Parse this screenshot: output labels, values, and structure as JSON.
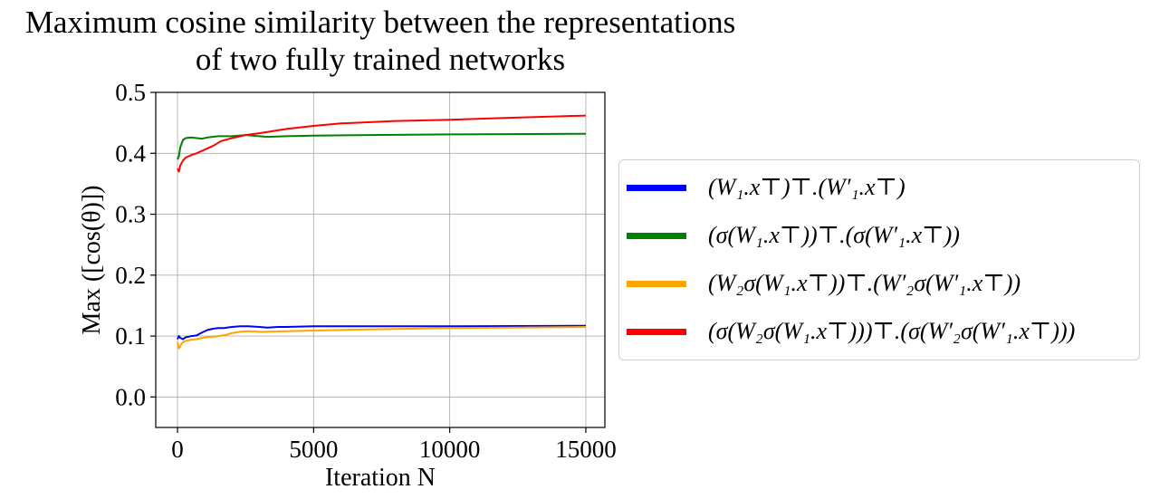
{
  "chart_data": {
    "type": "line",
    "title": [
      "Maximum cosine similarity between the representations",
      "of  two fully trained networks"
    ],
    "xlabel": "Iteration N",
    "ylabel": "Max ([cos(θ)])",
    "xlim": [
      -800,
      15700
    ],
    "ylim": [
      -0.05,
      0.5
    ],
    "xticks": [
      0,
      5000,
      10000,
      15000
    ],
    "xtick_labels": [
      "0",
      "5000",
      "10000",
      "15000"
    ],
    "yticks": [
      0.0,
      0.1,
      0.2,
      0.3,
      0.4,
      0.5
    ],
    "ytick_labels": [
      "0.0",
      "0.1",
      "0.2",
      "0.3",
      "0.4",
      "0.5"
    ],
    "grid": true,
    "legend_position": "outside-right",
    "series": [
      {
        "name": "(W₁.x⊤)⊤.(W′₁.x⊤)",
        "color": "#0000ff",
        "x": [
          0,
          50,
          100,
          200,
          300,
          500,
          700,
          900,
          1100,
          1300,
          1500,
          1700,
          2000,
          2300,
          2600,
          3000,
          3300,
          3700,
          4000,
          5000,
          7000,
          10000,
          15000
        ],
        "y": [
          0.095,
          0.1,
          0.097,
          0.095,
          0.098,
          0.1,
          0.101,
          0.106,
          0.11,
          0.112,
          0.113,
          0.113,
          0.115,
          0.116,
          0.116,
          0.115,
          0.114,
          0.115,
          0.115,
          0.116,
          0.116,
          0.116,
          0.117
        ]
      },
      {
        "name": "(σ(W₁.x⊤))⊤.(σ(W′₁.x⊤))",
        "color": "#008000",
        "x": [
          0,
          50,
          100,
          200,
          300,
          500,
          700,
          900,
          1100,
          1500,
          2000,
          2500,
          3000,
          3300,
          4000,
          5000,
          7000,
          10000,
          15000
        ],
        "y": [
          0.39,
          0.395,
          0.41,
          0.422,
          0.425,
          0.426,
          0.425,
          0.424,
          0.426,
          0.428,
          0.428,
          0.43,
          0.428,
          0.427,
          0.428,
          0.429,
          0.43,
          0.431,
          0.432
        ]
      },
      {
        "name": "(W₂σ(W₁.x⊤))⊤.(W′₂σ(W′₁.x⊤))",
        "color": "#ffa500",
        "x": [
          0,
          50,
          100,
          150,
          200,
          300,
          500,
          700,
          900,
          1100,
          1300,
          1500,
          1800,
          2000,
          2300,
          2600,
          3000,
          3200,
          4000,
          5000,
          7000,
          10000,
          15000
        ],
        "y": [
          0.09,
          0.08,
          0.083,
          0.088,
          0.09,
          0.092,
          0.094,
          0.095,
          0.097,
          0.098,
          0.099,
          0.1,
          0.102,
          0.105,
          0.107,
          0.108,
          0.107,
          0.107,
          0.108,
          0.109,
          0.111,
          0.113,
          0.115
        ]
      },
      {
        "name": "(σ(W₂σ(W₁.x⊤)))⊤.(σ(W′₂σ(W′₁.x⊤)))",
        "color": "#ff0000",
        "x": [
          0,
          50,
          100,
          200,
          300,
          500,
          700,
          1000,
          1300,
          1600,
          2000,
          2500,
          3000,
          3300,
          4000,
          5000,
          6000,
          8000,
          10000,
          12000,
          15000
        ],
        "y": [
          0.375,
          0.37,
          0.38,
          0.388,
          0.393,
          0.397,
          0.4,
          0.406,
          0.412,
          0.42,
          0.425,
          0.43,
          0.433,
          0.435,
          0.44,
          0.445,
          0.449,
          0.453,
          0.455,
          0.458,
          0.462
        ]
      }
    ]
  }
}
